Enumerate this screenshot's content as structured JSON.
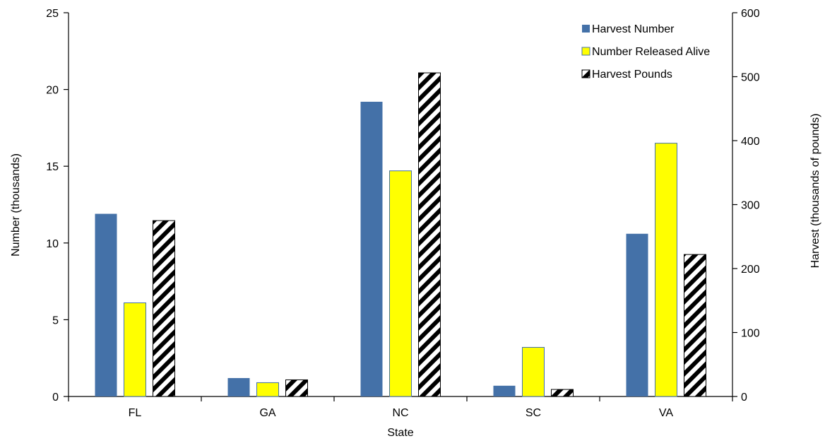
{
  "chart_data": {
    "type": "bar",
    "title": "",
    "xlabel": "State",
    "ylabel": "Number (thousands)",
    "y2label": "Harvest (thousands of pounds)",
    "categories": [
      "FL",
      "GA",
      "NC",
      "SC",
      "VA"
    ],
    "ylim": [
      0,
      25
    ],
    "y2lim": [
      0,
      600
    ],
    "yticks": [
      "0",
      "5",
      "10",
      "15",
      "20",
      "25"
    ],
    "y2ticks": [
      "0",
      "100",
      "200",
      "300",
      "400",
      "500",
      "600"
    ],
    "grid": false,
    "legend_position": "top-right",
    "series": [
      {
        "name": "Harvest Number",
        "axis": "left",
        "values": [
          11.9,
          1.2,
          19.2,
          0.7,
          10.6
        ],
        "color": "#4471a8",
        "pattern": "solid"
      },
      {
        "name": "Number Released Alive",
        "axis": "left",
        "values": [
          6.1,
          0.9,
          14.7,
          3.2,
          16.5
        ],
        "color": "#ffff00",
        "pattern": "solid"
      },
      {
        "name": "Harvest Pounds",
        "axis": "right",
        "values": [
          275,
          26,
          506,
          11,
          222
        ],
        "color": "#000000",
        "pattern": "diagonal-stripes"
      }
    ]
  }
}
